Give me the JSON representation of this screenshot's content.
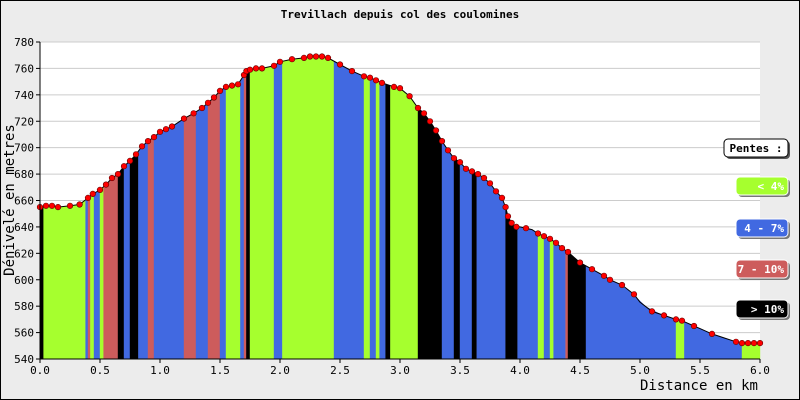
{
  "chart_data": {
    "type": "area",
    "title": "Trevillach depuis col des coulomines",
    "xlabel": "Distance en km",
    "ylabel": "Dénivelé en metres",
    "xlim": [
      0,
      6
    ],
    "ylim": [
      540,
      780
    ],
    "x_ticks": [
      "0.0",
      "0.5",
      "1.0",
      "1.5",
      "2.0",
      "2.5",
      "3.0",
      "3.5",
      "4.0",
      "4.5",
      "5.0",
      "5.5",
      "6.0"
    ],
    "y_ticks": [
      "540",
      "560",
      "580",
      "600",
      "620",
      "640",
      "660",
      "680",
      "700",
      "720",
      "740",
      "760",
      "780"
    ],
    "grid": true,
    "legend_position": "right",
    "legend_title": "Pentes :",
    "legend": [
      {
        "label": "< 4%",
        "color": "#a6ff2e"
      },
      {
        "label": "4 - 7%",
        "color": "#4169e1"
      },
      {
        "label": "7 - 10%",
        "color": "#cd5c5c"
      },
      {
        "label": "> 10%",
        "color": "#000000"
      }
    ],
    "profile": [
      [
        0.0,
        655
      ],
      [
        0.05,
        656
      ],
      [
        0.1,
        656
      ],
      [
        0.15,
        655
      ],
      [
        0.25,
        656
      ],
      [
        0.33,
        657
      ],
      [
        0.4,
        662
      ],
      [
        0.44,
        665
      ],
      [
        0.5,
        668
      ],
      [
        0.55,
        672
      ],
      [
        0.6,
        677
      ],
      [
        0.65,
        680
      ],
      [
        0.7,
        686
      ],
      [
        0.75,
        690
      ],
      [
        0.8,
        695
      ],
      [
        0.85,
        701
      ],
      [
        0.9,
        705
      ],
      [
        0.95,
        708
      ],
      [
        1.0,
        712
      ],
      [
        1.05,
        714
      ],
      [
        1.1,
        716
      ],
      [
        1.2,
        722
      ],
      [
        1.28,
        726
      ],
      [
        1.35,
        730
      ],
      [
        1.4,
        734
      ],
      [
        1.45,
        738
      ],
      [
        1.5,
        743
      ],
      [
        1.55,
        746
      ],
      [
        1.6,
        747
      ],
      [
        1.65,
        748
      ],
      [
        1.7,
        755
      ],
      [
        1.72,
        758
      ],
      [
        1.75,
        759
      ],
      [
        1.8,
        760
      ],
      [
        1.85,
        760
      ],
      [
        1.95,
        762
      ],
      [
        2.0,
        765
      ],
      [
        2.1,
        767
      ],
      [
        2.2,
        768
      ],
      [
        2.25,
        769
      ],
      [
        2.3,
        769
      ],
      [
        2.35,
        769
      ],
      [
        2.4,
        768
      ],
      [
        2.5,
        763
      ],
      [
        2.6,
        758
      ],
      [
        2.7,
        754
      ],
      [
        2.75,
        753
      ],
      [
        2.8,
        751
      ],
      [
        2.85,
        749
      ],
      [
        2.95,
        746
      ],
      [
        3.0,
        745
      ],
      [
        3.08,
        739
      ],
      [
        3.15,
        730
      ],
      [
        3.2,
        726
      ],
      [
        3.25,
        720
      ],
      [
        3.3,
        713
      ],
      [
        3.35,
        705
      ],
      [
        3.4,
        698
      ],
      [
        3.45,
        692
      ],
      [
        3.5,
        689
      ],
      [
        3.55,
        684
      ],
      [
        3.6,
        682
      ],
      [
        3.65,
        680
      ],
      [
        3.7,
        677
      ],
      [
        3.75,
        673
      ],
      [
        3.8,
        667
      ],
      [
        3.85,
        662
      ],
      [
        3.88,
        655
      ],
      [
        3.9,
        648
      ],
      [
        3.93,
        643
      ],
      [
        3.97,
        640
      ],
      [
        4.0,
        640
      ],
      [
        4.05,
        639
      ],
      [
        4.1,
        638
      ],
      [
        4.15,
        635
      ],
      [
        4.2,
        633
      ],
      [
        4.25,
        631
      ],
      [
        4.3,
        628
      ],
      [
        4.35,
        624
      ],
      [
        4.4,
        621
      ],
      [
        4.5,
        613
      ],
      [
        4.6,
        608
      ],
      [
        4.7,
        603
      ],
      [
        4.75,
        600
      ],
      [
        4.85,
        596
      ],
      [
        4.95,
        589
      ],
      [
        5.0,
        583
      ],
      [
        5.1,
        576
      ],
      [
        5.2,
        573
      ],
      [
        5.3,
        570
      ],
      [
        5.35,
        569
      ],
      [
        5.45,
        565
      ],
      [
        5.5,
        563
      ],
      [
        5.6,
        559
      ],
      [
        5.7,
        556
      ],
      [
        5.8,
        553
      ],
      [
        5.85,
        552
      ],
      [
        5.9,
        552
      ],
      [
        5.95,
        552
      ],
      [
        6.0,
        552
      ]
    ],
    "markers": [
      [
        0.0,
        655
      ],
      [
        0.05,
        656
      ],
      [
        0.1,
        656
      ],
      [
        0.15,
        655
      ],
      [
        0.25,
        656
      ],
      [
        0.33,
        657
      ],
      [
        0.4,
        662
      ],
      [
        0.44,
        665
      ],
      [
        0.5,
        668
      ],
      [
        0.55,
        672
      ],
      [
        0.6,
        677
      ],
      [
        0.65,
        680
      ],
      [
        0.7,
        686
      ],
      [
        0.75,
        690
      ],
      [
        0.8,
        695
      ],
      [
        0.85,
        701
      ],
      [
        0.9,
        705
      ],
      [
        0.95,
        708
      ],
      [
        1.0,
        712
      ],
      [
        1.05,
        714
      ],
      [
        1.1,
        716
      ],
      [
        1.2,
        722
      ],
      [
        1.28,
        726
      ],
      [
        1.35,
        730
      ],
      [
        1.4,
        734
      ],
      [
        1.45,
        738
      ],
      [
        1.5,
        743
      ],
      [
        1.55,
        746
      ],
      [
        1.6,
        747
      ],
      [
        1.65,
        748
      ],
      [
        1.7,
        755
      ],
      [
        1.72,
        758
      ],
      [
        1.75,
        759
      ],
      [
        1.8,
        760
      ],
      [
        1.85,
        760
      ],
      [
        1.95,
        762
      ],
      [
        2.0,
        765
      ],
      [
        2.1,
        767
      ],
      [
        2.2,
        768
      ],
      [
        2.25,
        769
      ],
      [
        2.3,
        769
      ],
      [
        2.35,
        769
      ],
      [
        2.4,
        768
      ],
      [
        2.5,
        763
      ],
      [
        2.6,
        758
      ],
      [
        2.7,
        754
      ],
      [
        2.75,
        753
      ],
      [
        2.8,
        751
      ],
      [
        2.85,
        749
      ],
      [
        2.95,
        746
      ],
      [
        3.0,
        745
      ],
      [
        3.08,
        739
      ],
      [
        3.15,
        730
      ],
      [
        3.2,
        726
      ],
      [
        3.25,
        720
      ],
      [
        3.3,
        713
      ],
      [
        3.35,
        705
      ],
      [
        3.4,
        698
      ],
      [
        3.45,
        692
      ],
      [
        3.5,
        689
      ],
      [
        3.55,
        684
      ],
      [
        3.6,
        682
      ],
      [
        3.65,
        680
      ],
      [
        3.7,
        677
      ],
      [
        3.75,
        673
      ],
      [
        3.8,
        667
      ],
      [
        3.85,
        662
      ],
      [
        3.88,
        655
      ],
      [
        3.9,
        648
      ],
      [
        3.93,
        643
      ],
      [
        3.97,
        640
      ],
      [
        4.05,
        639
      ],
      [
        4.15,
        635
      ],
      [
        4.2,
        633
      ],
      [
        4.25,
        631
      ],
      [
        4.3,
        628
      ],
      [
        4.35,
        624
      ],
      [
        4.4,
        621
      ],
      [
        4.5,
        613
      ],
      [
        4.6,
        608
      ],
      [
        4.7,
        603
      ],
      [
        4.75,
        600
      ],
      [
        4.85,
        596
      ],
      [
        4.95,
        589
      ],
      [
        5.1,
        576
      ],
      [
        5.2,
        573
      ],
      [
        5.3,
        570
      ],
      [
        5.35,
        569
      ],
      [
        5.45,
        565
      ],
      [
        5.6,
        559
      ],
      [
        5.8,
        553
      ],
      [
        5.85,
        552
      ],
      [
        5.9,
        552
      ],
      [
        5.95,
        552
      ],
      [
        6.0,
        552
      ]
    ],
    "slope_bands": [
      [
        0.0,
        0.03,
        "#000000"
      ],
      [
        0.03,
        0.38,
        "#a6ff2e"
      ],
      [
        0.38,
        0.4,
        "#4169e1"
      ],
      [
        0.4,
        0.42,
        "#cd5c5c"
      ],
      [
        0.42,
        0.45,
        "#a6ff2e"
      ],
      [
        0.45,
        0.5,
        "#4169e1"
      ],
      [
        0.5,
        0.53,
        "#a6ff2e"
      ],
      [
        0.53,
        0.65,
        "#cd5c5c"
      ],
      [
        0.65,
        0.7,
        "#000000"
      ],
      [
        0.7,
        0.75,
        "#4169e1"
      ],
      [
        0.75,
        0.82,
        "#000000"
      ],
      [
        0.82,
        0.9,
        "#4169e1"
      ],
      [
        0.9,
        0.95,
        "#cd5c5c"
      ],
      [
        0.95,
        1.2,
        "#4169e1"
      ],
      [
        1.2,
        1.3,
        "#cd5c5c"
      ],
      [
        1.3,
        1.4,
        "#4169e1"
      ],
      [
        1.4,
        1.5,
        "#cd5c5c"
      ],
      [
        1.5,
        1.55,
        "#4169e1"
      ],
      [
        1.55,
        1.67,
        "#a6ff2e"
      ],
      [
        1.67,
        1.7,
        "#4169e1"
      ],
      [
        1.7,
        1.72,
        "#cd5c5c"
      ],
      [
        1.72,
        1.75,
        "#000000"
      ],
      [
        1.75,
        1.95,
        "#a6ff2e"
      ],
      [
        1.95,
        2.02,
        "#4169e1"
      ],
      [
        2.02,
        2.45,
        "#a6ff2e"
      ],
      [
        2.45,
        2.7,
        "#4169e1"
      ],
      [
        2.7,
        2.75,
        "#a6ff2e"
      ],
      [
        2.75,
        2.8,
        "#4169e1"
      ],
      [
        2.8,
        2.83,
        "#a6ff2e"
      ],
      [
        2.83,
        2.88,
        "#4169e1"
      ],
      [
        2.88,
        2.92,
        "#000000"
      ],
      [
        2.92,
        3.15,
        "#a6ff2e"
      ],
      [
        3.15,
        3.35,
        "#000000"
      ],
      [
        3.35,
        3.45,
        "#4169e1"
      ],
      [
        3.45,
        3.5,
        "#000000"
      ],
      [
        3.5,
        3.6,
        "#4169e1"
      ],
      [
        3.6,
        3.64,
        "#000000"
      ],
      [
        3.64,
        3.88,
        "#4169e1"
      ],
      [
        3.88,
        3.98,
        "#000000"
      ],
      [
        3.98,
        4.15,
        "#4169e1"
      ],
      [
        4.15,
        4.2,
        "#a6ff2e"
      ],
      [
        4.2,
        4.25,
        "#4169e1"
      ],
      [
        4.25,
        4.28,
        "#a6ff2e"
      ],
      [
        4.28,
        4.38,
        "#4169e1"
      ],
      [
        4.38,
        4.4,
        "#cd5c5c"
      ],
      [
        4.4,
        4.55,
        "#000000"
      ],
      [
        4.55,
        5.3,
        "#4169e1"
      ],
      [
        5.3,
        5.37,
        "#a6ff2e"
      ],
      [
        5.37,
        5.85,
        "#4169e1"
      ],
      [
        5.85,
        6.0,
        "#a6ff2e"
      ]
    ]
  }
}
